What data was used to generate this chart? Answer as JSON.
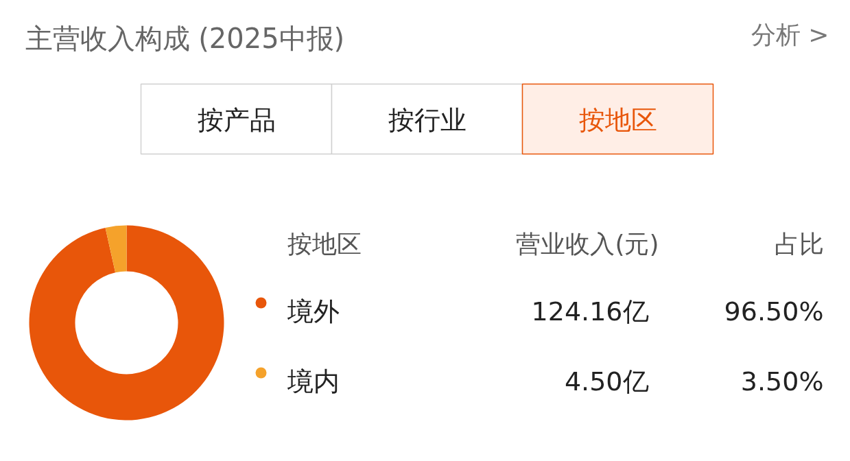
{
  "chart_data": {
    "type": "donut",
    "title": "主营收入构成 (2025中报)",
    "categories": [
      "境外",
      "境内"
    ],
    "values": [
      96.5,
      3.5
    ],
    "colors": [
      "#e8560a",
      "#f5a22b"
    ],
    "value_labels": [
      "96.50%",
      "3.50%"
    ],
    "legend": "right",
    "legend_title": "按地区",
    "annotations": [
      "分析 >",
      "按产品",
      "按行业",
      "按地区",
      "营业收入(元)",
      "占比",
      "124.16亿",
      "4.50亿"
    ]
  }
}
